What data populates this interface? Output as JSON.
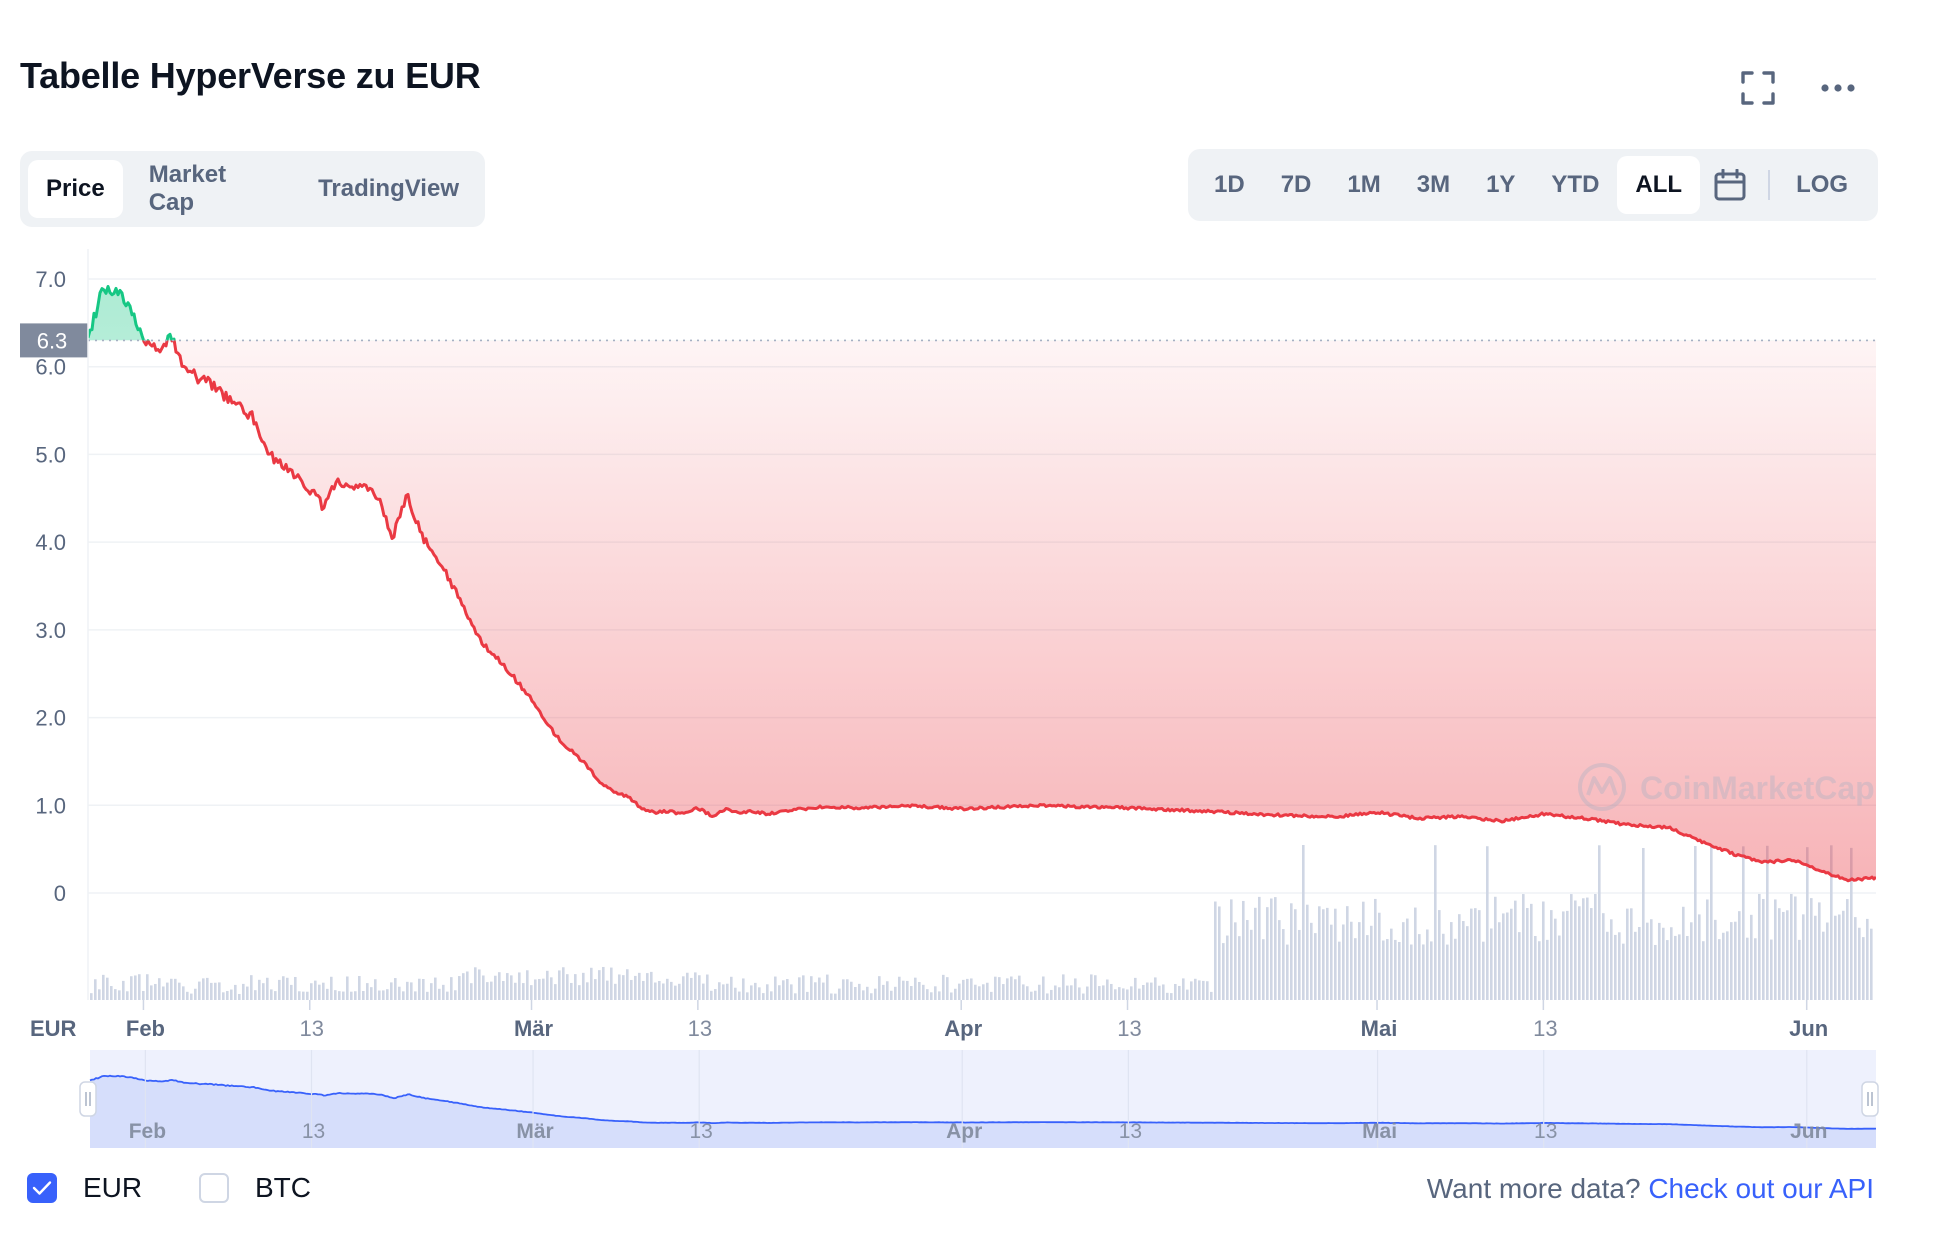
{
  "header": {
    "title": "Tabelle HyperVerse zu EUR",
    "fullscreen_icon": "fullscreen-icon",
    "more_icon": "more-horizontal-icon"
  },
  "tabs": [
    {
      "label": "Price",
      "active": true
    },
    {
      "label": "Market Cap",
      "active": false
    },
    {
      "label": "TradingView",
      "active": false
    }
  ],
  "ranges": [
    {
      "label": "1D",
      "active": false
    },
    {
      "label": "7D",
      "active": false
    },
    {
      "label": "1M",
      "active": false
    },
    {
      "label": "3M",
      "active": false
    },
    {
      "label": "1Y",
      "active": false
    },
    {
      "label": "YTD",
      "active": false
    },
    {
      "label": "ALL",
      "active": true
    }
  ],
  "calendar_icon": "calendar-icon",
  "log_label": "LOG",
  "legend": {
    "items": [
      {
        "label": "EUR",
        "checked": true
      },
      {
        "label": "BTC",
        "checked": false
      }
    ]
  },
  "footer": {
    "prefix": "Want more data?",
    "link": "Check out our API"
  },
  "watermark": "CoinMarketCap",
  "colors": {
    "up": "#16c784",
    "down": "#ea3943",
    "accent": "#3861fb",
    "navigator_line": "#3861fb",
    "volume": "#cfd6e4"
  },
  "chart_data": {
    "type": "area",
    "currency_label": "EUR",
    "y_ticks": [
      7.0,
      6.0,
      5.0,
      4.0,
      3.0,
      2.0,
      1.0,
      0
    ],
    "y_tick_labels": [
      "7.0",
      "6.0",
      "5.0",
      "4.0",
      "3.0",
      "2.0",
      "1.0",
      "0"
    ],
    "ylim": [
      0,
      7.0
    ],
    "reference_value": 6.3,
    "reference_label": "6.3",
    "x_tick_labels": [
      "Feb",
      "13",
      "Mär",
      "13",
      "Apr",
      "13",
      "Mai",
      "13",
      "Jun"
    ],
    "x_tick_dates": [
      "2022-02-01",
      "2022-02-13",
      "2022-03-01",
      "2022-03-13",
      "2022-04-01",
      "2022-04-13",
      "2022-05-01",
      "2022-05-13",
      "2022-06-01"
    ],
    "x_range": [
      "2022-01-28",
      "2022-06-06"
    ],
    "series": [
      {
        "x": [
          "2022-01-28",
          "2022-01-29",
          "2022-01-30",
          "2022-01-31",
          "2022-02-01",
          "2022-02-02",
          "2022-02-03",
          "2022-02-04",
          "2022-02-05",
          "2022-02-06",
          "2022-02-07",
          "2022-02-08",
          "2022-02-09",
          "2022-02-10",
          "2022-02-11",
          "2022-02-12",
          "2022-02-13",
          "2022-02-14",
          "2022-02-15",
          "2022-02-16",
          "2022-02-17",
          "2022-02-18",
          "2022-02-19",
          "2022-02-20",
          "2022-02-21",
          "2022-02-22",
          "2022-02-23",
          "2022-02-24",
          "2022-02-25",
          "2022-02-26",
          "2022-02-27",
          "2022-02-28",
          "2022-03-01",
          "2022-03-02",
          "2022-03-03",
          "2022-03-04",
          "2022-03-05",
          "2022-03-06",
          "2022-03-07",
          "2022-03-08",
          "2022-03-09",
          "2022-03-10",
          "2022-03-11",
          "2022-03-12",
          "2022-03-13",
          "2022-03-14",
          "2022-03-15",
          "2022-03-16",
          "2022-03-17",
          "2022-03-18",
          "2022-03-20",
          "2022-03-22",
          "2022-03-25",
          "2022-03-28",
          "2022-04-01",
          "2022-04-04",
          "2022-04-07",
          "2022-04-10",
          "2022-04-13",
          "2022-04-16",
          "2022-04-19",
          "2022-04-22",
          "2022-04-25",
          "2022-04-28",
          "2022-05-01",
          "2022-05-04",
          "2022-05-07",
          "2022-05-10",
          "2022-05-13",
          "2022-05-16",
          "2022-05-19",
          "2022-05-22",
          "2022-05-25",
          "2022-05-27",
          "2022-05-29",
          "2022-05-31",
          "2022-06-02",
          "2022-06-04",
          "2022-06-06"
        ],
        "values": [
          6.3,
          6.85,
          6.9,
          6.65,
          6.35,
          6.2,
          6.35,
          6.0,
          5.85,
          5.8,
          5.65,
          5.55,
          5.4,
          5.0,
          4.9,
          4.75,
          4.6,
          4.4,
          4.7,
          4.65,
          4.6,
          4.5,
          4.05,
          4.55,
          4.1,
          3.85,
          3.6,
          3.3,
          2.95,
          2.75,
          2.6,
          2.4,
          2.2,
          1.95,
          1.75,
          1.6,
          1.45,
          1.25,
          1.15,
          1.1,
          0.95,
          0.92,
          0.93,
          0.9,
          0.97,
          0.88,
          0.95,
          0.92,
          0.93,
          0.9,
          0.95,
          0.98,
          0.97,
          1.0,
          0.96,
          0.98,
          1.0,
          0.98,
          0.97,
          0.95,
          0.93,
          0.9,
          0.88,
          0.87,
          0.92,
          0.85,
          0.87,
          0.82,
          0.9,
          0.85,
          0.78,
          0.75,
          0.55,
          0.43,
          0.35,
          0.38,
          0.25,
          0.15,
          0.17
        ]
      }
    ]
  }
}
